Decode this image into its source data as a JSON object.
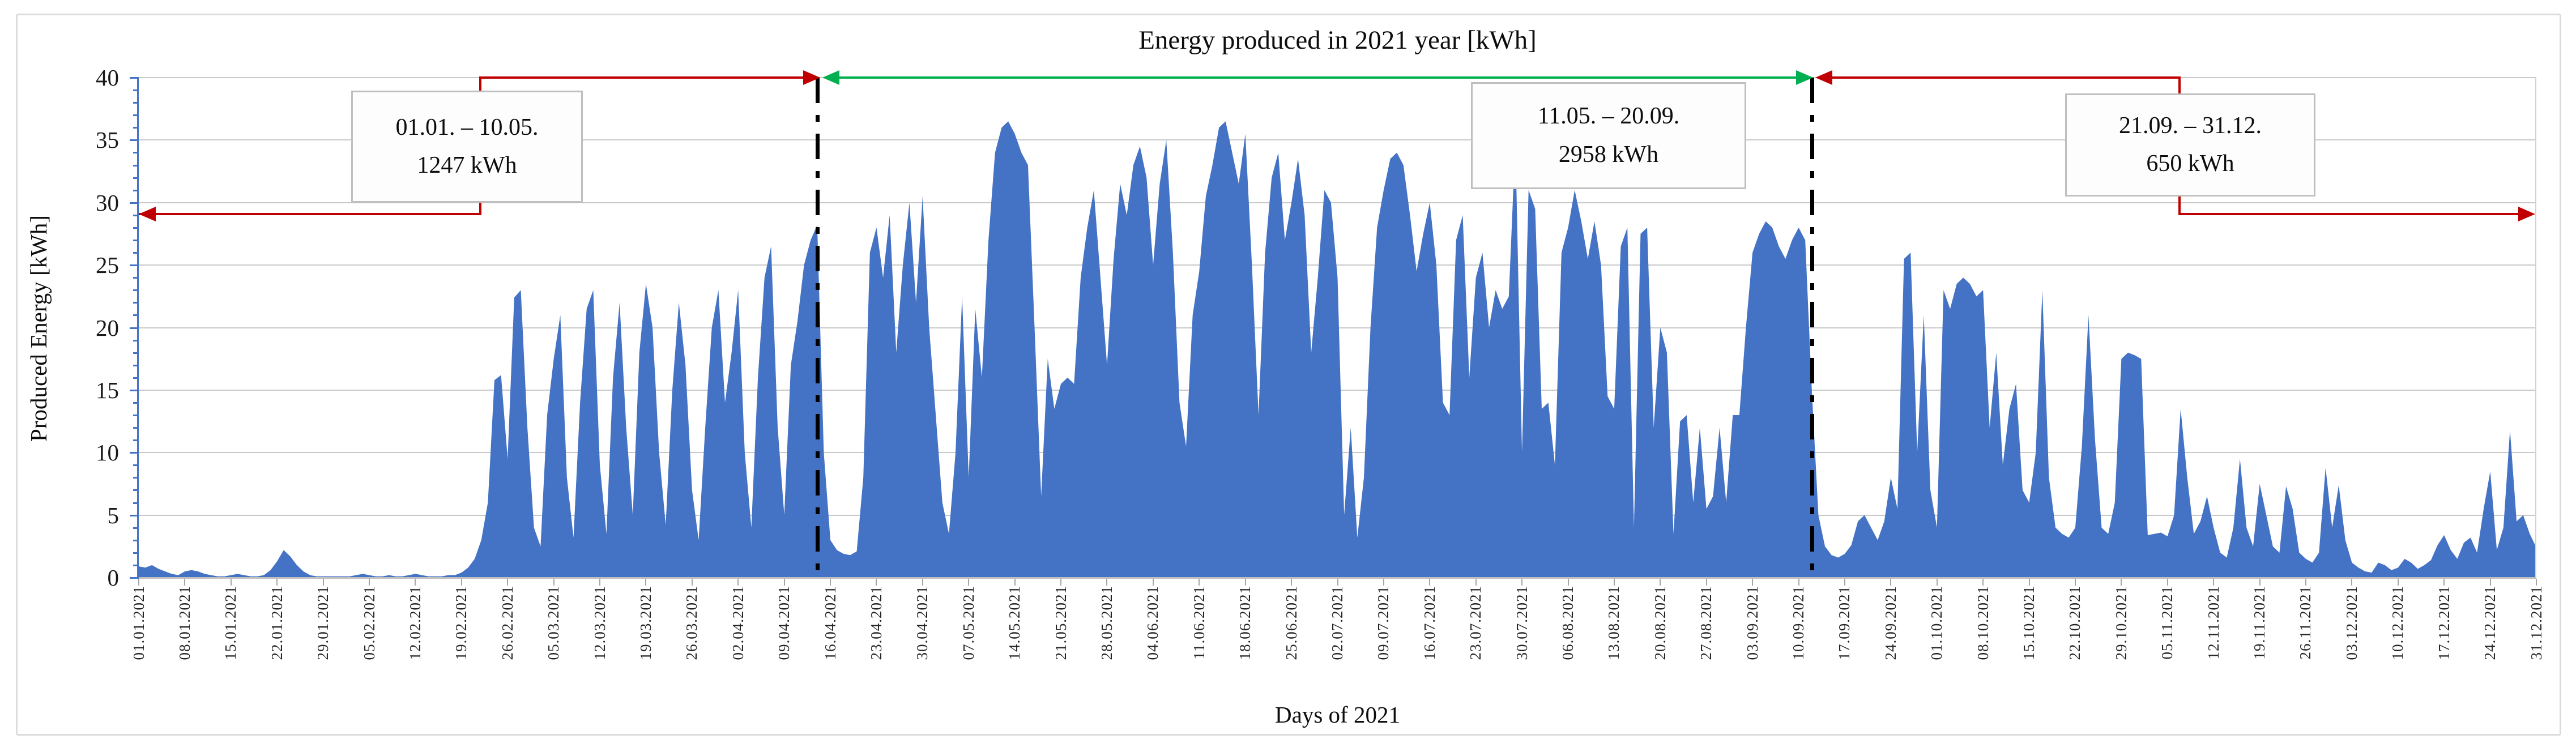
{
  "figure": {
    "title": "Energy produced in 2021 year [kWh]",
    "y_axis_title": "Produced Energy [kWh]",
    "x_axis_title": "Days of 2021"
  },
  "annotations": {
    "period1": {
      "range": "01.01. – 10.05.",
      "total": "1247 kWh"
    },
    "period2": {
      "range": "11.05. – 20.09.",
      "total": "2958 kWh"
    },
    "period3": {
      "range": "21.09. – 31.12.",
      "total": "650 kWh"
    }
  },
  "colors": {
    "area_fill": "#4472C4",
    "axis_blue": "#4472C4",
    "gridline": "#C9C9C9",
    "annotation_red": "#C00000",
    "annotation_green": "#00B050",
    "separator_black": "#000000",
    "callout_border": "#BFBFBF"
  },
  "chart_data": {
    "type": "area",
    "title": "Energy produced in 2021 year [kWh]",
    "xlabel": "Days of 2021",
    "ylabel": "Produced Energy [kWh]",
    "ylim": [
      0,
      40
    ],
    "y_ticks": [
      40,
      35,
      30,
      25,
      20,
      15,
      10,
      5,
      0
    ],
    "y_minor_tick_step": 1,
    "grid": true,
    "legend": false,
    "x_tick_labels": [
      "01.01.2021",
      "08.01.2021",
      "15.01.2021",
      "22.01.2021",
      "29.01.2021",
      "05.02.2021",
      "12.02.2021",
      "19.02.2021",
      "26.02.2021",
      "05.03.2021",
      "12.03.2021",
      "19.03.2021",
      "26.03.2021",
      "02.04.2021",
      "09.04.2021",
      "16.04.2021",
      "23.04.2021",
      "30.04.2021",
      "07.05.2021",
      "14.05.2021",
      "21.05.2021",
      "28.05.2021",
      "04.06.2021",
      "11.06.2021",
      "18.06.2021",
      "25.06.2021",
      "02.07.2021",
      "09.07.2021",
      "16.07.2021",
      "23.07.2021",
      "30.07.2021",
      "06.08.2021",
      "13.08.2021",
      "20.08.2021",
      "27.08.2021",
      "03.09.2021",
      "10.09.2021",
      "17.09.2021",
      "24.09.2021",
      "01.10.2021",
      "08.10.2021",
      "15.10.2021",
      "22.10.2021",
      "29.10.2021",
      "05.11.2021",
      "12.11.2021",
      "19.11.2021",
      "26.11.2021",
      "03.12.2021",
      "10.12.2021",
      "17.12.2021",
      "24.12.2021",
      "31.12.2021"
    ],
    "separator_days": [
      104,
      255
    ],
    "period_totals_kwh": {
      "01.01-10.05": 1247,
      "11.05-20.09": 2958,
      "21.09-31.12": 650
    },
    "series": [
      {
        "name": "Produced Energy",
        "unit": "kWh",
        "start_date": "01.01.2021",
        "daily_values": [
          0.9,
          0.8,
          1.0,
          0.7,
          0.5,
          0.3,
          0.2,
          0.5,
          0.6,
          0.5,
          0.3,
          0.2,
          0.1,
          0.1,
          0.2,
          0.3,
          0.2,
          0.1,
          0.1,
          0.2,
          0.6,
          1.3,
          2.2,
          1.7,
          1.0,
          0.5,
          0.2,
          0.1,
          0.1,
          0.1,
          0.1,
          0.1,
          0.1,
          0.2,
          0.3,
          0.2,
          0.1,
          0.1,
          0.2,
          0.1,
          0.1,
          0.2,
          0.3,
          0.2,
          0.1,
          0.1,
          0.1,
          0.2,
          0.2,
          0.4,
          0.8,
          1.5,
          3.0,
          6.0,
          15.8,
          16.2,
          9.5,
          22.4,
          23.0,
          12.0,
          4.0,
          2.5,
          13.0,
          17.5,
          21.0,
          8.0,
          3.2,
          14.0,
          21.5,
          23.0,
          9.0,
          3.5,
          16.0,
          22.0,
          12.0,
          5.0,
          18.0,
          23.5,
          20.0,
          10.0,
          4.2,
          15.0,
          22.0,
          17.0,
          7.0,
          3.0,
          12.0,
          20.0,
          23.0,
          14.0,
          18.0,
          23.0,
          10.0,
          4.0,
          16.0,
          24.0,
          26.5,
          12.0,
          5.0,
          17.0,
          20.5,
          25.0,
          27.0,
          28.2,
          10.0,
          3.0,
          2.2,
          1.9,
          1.8,
          2.1,
          8.0,
          26.0,
          28.0,
          24.0,
          29.0,
          18.0,
          25.0,
          30.0,
          22.0,
          30.5,
          20.0,
          13.0,
          6.0,
          3.5,
          10.0,
          22.5,
          8.0,
          21.5,
          16.0,
          27.0,
          34.0,
          36.0,
          36.5,
          35.5,
          34.0,
          33.0,
          20.0,
          6.5,
          17.5,
          13.5,
          15.5,
          16.0,
          15.5,
          24.0,
          28.0,
          31.0,
          24.0,
          17.0,
          25.5,
          31.5,
          29.0,
          33.0,
          34.5,
          32.0,
          25.0,
          31.5,
          35.0,
          26.0,
          14.0,
          10.5,
          21.0,
          24.5,
          30.5,
          33.0,
          36.0,
          36.5,
          34.0,
          31.5,
          35.5,
          25.0,
          13.0,
          26.0,
          32.0,
          34.0,
          27.0,
          30.0,
          33.5,
          29.0,
          18.0,
          24.0,
          31.0,
          30.0,
          24.0,
          5.0,
          12.0,
          3.2,
          8.0,
          20.0,
          28.0,
          31.0,
          33.5,
          34.0,
          33.0,
          29.0,
          24.5,
          27.5,
          30.0,
          25.0,
          14.0,
          13.0,
          27.0,
          29.0,
          16.0,
          24.0,
          26.0,
          20.0,
          23.0,
          21.5,
          22.5,
          35.0,
          10.0,
          31.0,
          29.5,
          13.5,
          14.0,
          9.0,
          26.0,
          28.0,
          31.0,
          28.5,
          25.5,
          28.5,
          25.0,
          14.5,
          13.5,
          26.5,
          28.0,
          4.0,
          27.5,
          28.0,
          12.0,
          20.0,
          18.0,
          3.5,
          12.5,
          13.0,
          6.0,
          12.0,
          5.5,
          6.5,
          12.0,
          6.0,
          13.0,
          13.0,
          20.0,
          26.0,
          27.5,
          28.5,
          28.0,
          26.5,
          25.5,
          27.0,
          28.0,
          27.0,
          15.0,
          5.0,
          2.5,
          1.8,
          1.6,
          1.9,
          2.6,
          4.5,
          5.0,
          4.0,
          3.0,
          4.5,
          8.0,
          5.5,
          25.5,
          26.0,
          10.0,
          21.0,
          7.0,
          4.0,
          23.0,
          21.5,
          23.5,
          24.0,
          23.5,
          22.5,
          23.0,
          12.0,
          18.0,
          9.0,
          13.5,
          15.5,
          7.0,
          6.0,
          10.0,
          23.0,
          8.0,
          4.0,
          3.5,
          3.2,
          4.0,
          10.5,
          21.0,
          11.0,
          4.0,
          3.5,
          6.0,
          17.5,
          18.0,
          17.8,
          17.5,
          3.4,
          3.5,
          3.6,
          3.3,
          5.0,
          13.5,
          8.0,
          3.5,
          4.5,
          6.5,
          4.0,
          2.0,
          1.6,
          4.0,
          9.5,
          4.0,
          2.5,
          7.5,
          5.0,
          2.5,
          2.0,
          7.3,
          5.5,
          2.0,
          1.5,
          1.2,
          2.0,
          8.8,
          4.0,
          7.4,
          3.0,
          1.2,
          0.8,
          0.5,
          0.4,
          1.2,
          1.0,
          0.6,
          0.8,
          1.5,
          1.2,
          0.7,
          1.0,
          1.4,
          2.6,
          3.4,
          2.2,
          1.5,
          2.8,
          3.2,
          2.0,
          5.5,
          8.5,
          2.2,
          4.0,
          11.8,
          4.5,
          5.0,
          3.5,
          2.4
        ]
      }
    ]
  }
}
